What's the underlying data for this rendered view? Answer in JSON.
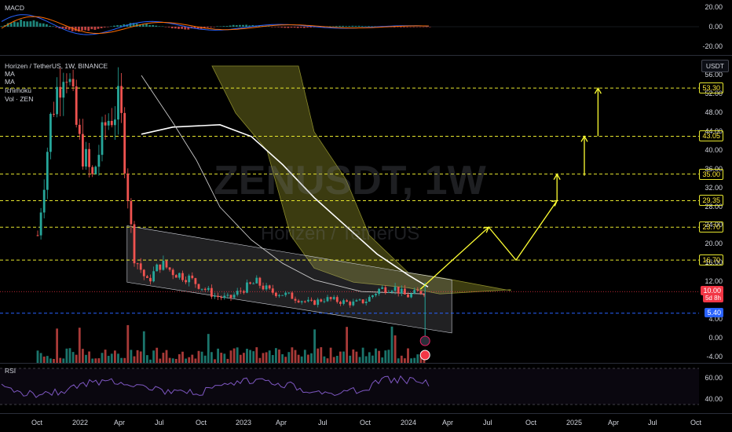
{
  "header": {
    "symbol_line": "Horizen / TetherUS, 1W, BINANCE",
    "indicators": [
      "MA",
      "MA",
      "Ichimoku",
      "Vol · ZEN"
    ],
    "currency_button": "USDT",
    "watermark_symbol": "ZENUSDT, 1W",
    "watermark_name": "Horizen / TetherUS"
  },
  "macd": {
    "label": "MACD",
    "axis_labels": [
      "20.00",
      "0.00",
      "-20.00"
    ]
  },
  "rsi": {
    "label": "RSI",
    "axis_labels": [
      "60.00",
      "40.00"
    ]
  },
  "time_axis": [
    "Oct",
    "2022",
    "Apr",
    "Jul",
    "Oct",
    "2023",
    "Apr",
    "Jul",
    "Oct",
    "2024",
    "Apr",
    "Jul",
    "Oct",
    "2025",
    "Apr",
    "Jul",
    "Oct"
  ],
  "chart_data": {
    "type": "candlestick",
    "symbol": "ZENUSDT",
    "interval": "1W",
    "exchange": "BINANCE",
    "price_axis_labels": [
      "56.00",
      "52.00",
      "48.00",
      "44.00",
      "40.00",
      "36.00",
      "32.00",
      "28.00",
      "24.00",
      "20.00",
      "16.00",
      "12.00",
      "8.00",
      "4.00",
      "0.00",
      "-4.00"
    ],
    "ylim": [
      -6,
      58
    ],
    "resistance_levels": [
      "53.30",
      "43.05",
      "35.00",
      "29.35",
      "23.70",
      "16.70"
    ],
    "current_price": "10.00",
    "countdown": "5d 8h",
    "support_level": "5.40",
    "price_path": [
      [
        "2021-10",
        22
      ],
      [
        "2021-11",
        48
      ],
      [
        "2021-12",
        60
      ],
      [
        "2022-01",
        42
      ],
      [
        "2022-02",
        34
      ],
      [
        "2022-03",
        46
      ],
      [
        "2022-04",
        50
      ],
      [
        "2022-05",
        18
      ],
      [
        "2022-06",
        12
      ],
      [
        "2022-07",
        16
      ],
      [
        "2022-08",
        14
      ],
      [
        "2022-09",
        13
      ],
      [
        "2022-10",
        11
      ],
      [
        "2022-11",
        9
      ],
      [
        "2022-12",
        8.5
      ],
      [
        "2023-01",
        10.5
      ],
      [
        "2023-02",
        12
      ],
      [
        "2023-03",
        10
      ],
      [
        "2023-04",
        9.5
      ],
      [
        "2023-05",
        8.5
      ],
      [
        "2023-06",
        7.5
      ],
      [
        "2023-07",
        8.5
      ],
      [
        "2023-08",
        8
      ],
      [
        "2023-09",
        7.5
      ],
      [
        "2023-10",
        8
      ],
      [
        "2023-11",
        10.5
      ],
      [
        "2023-12",
        11
      ],
      [
        "2024-01",
        9
      ],
      [
        "2024-02",
        10
      ]
    ],
    "projection_path": [
      [
        "2024-02",
        10.5
      ],
      [
        "2024-07",
        23.7
      ],
      [
        "2024-09",
        16.7
      ],
      [
        "2024-12",
        29.35
      ],
      [
        "2024-12",
        35.0
      ],
      [
        "2025-02",
        43.05
      ],
      [
        "2025-02",
        43.05
      ],
      [
        "2025-03",
        53.3
      ]
    ],
    "channel": {
      "upper": [
        [
          "2022-05",
          24
        ],
        [
          "2024-02",
          12.5
        ]
      ],
      "lower": [
        [
          "2022-05",
          12
        ],
        [
          "2024-02",
          1.2
        ]
      ]
    },
    "colors": {
      "up": "#26a69a",
      "down": "#ef5350",
      "cloud": "#6b6b1e",
      "projection": "#ffff33",
      "level": "#e6e62e",
      "ma_line": "#ffffff",
      "macd_line": "#2962ff",
      "signal_line": "#ff6d00",
      "rsi_line": "#7e57c2",
      "current_price_bg": "#f23645",
      "support_bg": "#2962ff"
    }
  }
}
